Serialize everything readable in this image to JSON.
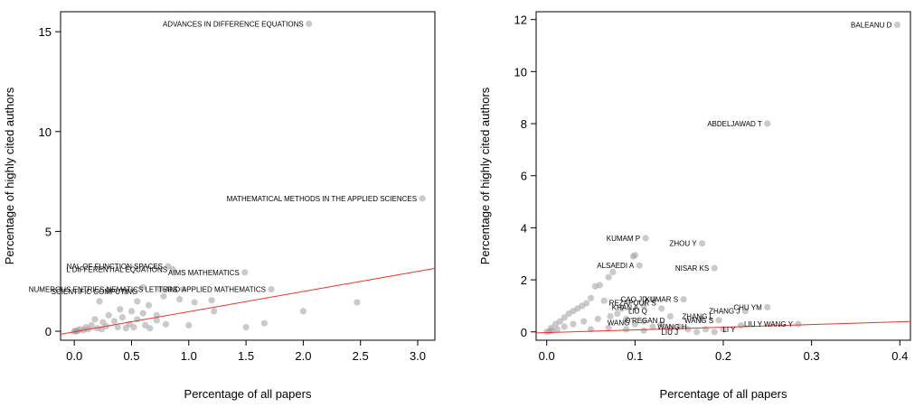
{
  "chart_data": [
    {
      "type": "scatter",
      "title": "",
      "xlabel": "Percentage of all papers",
      "ylabel": "Percentage of highly cited authors",
      "xlim": [
        -0.12,
        3.15
      ],
      "ylim": [
        -0.45,
        16.0
      ],
      "xticks": [
        0.0,
        0.5,
        1.0,
        1.5,
        2.0,
        2.5,
        3.0
      ],
      "xtick_labels": [
        "0.0",
        "0.5",
        "1.0",
        "1.5",
        "2.0",
        "2.5",
        "3.0"
      ],
      "yticks": [
        0,
        5,
        10,
        15
      ],
      "ytick_labels": [
        "0",
        "5",
        "10",
        "15"
      ],
      "grid": false,
      "point_color": "#9e9e9e",
      "fit_line_color": "#e8332a",
      "fit_line": {
        "x": [
          -0.12,
          3.15
        ],
        "y": [
          -0.15,
          3.15
        ]
      },
      "points": [
        {
          "x": 2.05,
          "y": 15.4
        },
        {
          "x": 3.04,
          "y": 6.65
        },
        {
          "x": 0.82,
          "y": 3.25
        },
        {
          "x": 0.86,
          "y": 3.1
        },
        {
          "x": 1.49,
          "y": 2.95
        },
        {
          "x": 0.6,
          "y": 2.2
        },
        {
          "x": 0.75,
          "y": 2.1
        },
        {
          "x": 0.95,
          "y": 2.1
        },
        {
          "x": 1.72,
          "y": 2.1
        },
        {
          "x": 0.3,
          "y": 2.05
        },
        {
          "x": 0.45,
          "y": 2.0
        },
        {
          "x": 0.78,
          "y": 1.75
        },
        {
          "x": 0.92,
          "y": 1.6
        },
        {
          "x": 1.2,
          "y": 1.55
        },
        {
          "x": 2.47,
          "y": 1.45
        },
        {
          "x": 0.55,
          "y": 1.5
        },
        {
          "x": 0.65,
          "y": 1.3
        },
        {
          "x": 1.05,
          "y": 1.45
        },
        {
          "x": 0.22,
          "y": 1.5
        },
        {
          "x": 0.5,
          "y": 1.0
        },
        {
          "x": 0.6,
          "y": 0.9
        },
        {
          "x": 1.22,
          "y": 1.0
        },
        {
          "x": 2.0,
          "y": 1.0
        },
        {
          "x": 0.3,
          "y": 0.8
        },
        {
          "x": 0.42,
          "y": 0.7
        },
        {
          "x": 0.55,
          "y": 0.6
        },
        {
          "x": 0.72,
          "y": 0.55
        },
        {
          "x": 0.18,
          "y": 0.6
        },
        {
          "x": 0.25,
          "y": 0.45
        },
        {
          "x": 0.35,
          "y": 0.5
        },
        {
          "x": 0.48,
          "y": 0.35
        },
        {
          "x": 0.62,
          "y": 0.3
        },
        {
          "x": 0.8,
          "y": 0.35
        },
        {
          "x": 1.0,
          "y": 0.3
        },
        {
          "x": 1.5,
          "y": 0.2
        },
        {
          "x": 1.66,
          "y": 0.4
        },
        {
          "x": 0.1,
          "y": 0.2
        },
        {
          "x": 0.15,
          "y": 0.3
        },
        {
          "x": 0.2,
          "y": 0.15
        },
        {
          "x": 0.28,
          "y": 0.25
        },
        {
          "x": 0.38,
          "y": 0.2
        },
        {
          "x": 0.05,
          "y": 0.1
        },
        {
          "x": 0.08,
          "y": 0.05
        },
        {
          "x": 0.12,
          "y": 0.1
        },
        {
          "x": 0.24,
          "y": 0.1
        },
        {
          "x": 0.45,
          "y": 0.15
        },
        {
          "x": 0.66,
          "y": 0.15
        },
        {
          "x": 0.52,
          "y": 0.2
        },
        {
          "x": 0.72,
          "y": 0.8
        },
        {
          "x": 0.4,
          "y": 1.1
        },
        {
          "x": 0.03,
          "y": 0.03
        },
        {
          "x": 0.02,
          "y": 0.0
        },
        {
          "x": 0.01,
          "y": 0.0
        },
        {
          "x": 0.0,
          "y": 0.0
        }
      ],
      "labels": [
        {
          "text": "ADVANCES IN DIFFERENCE EQUATIONS",
          "x": 2.05,
          "y": 15.4
        },
        {
          "text": "MATHEMATICAL METHODS IN THE APPLIED SCIENCES",
          "x": 3.04,
          "y": 6.65
        },
        {
          "text": "AIMS MATHEMATICS",
          "x": 1.49,
          "y": 2.95
        },
        {
          "text": "NAL OF FUNCTION SPACES",
          "x": 0.82,
          "y": 3.25
        },
        {
          "text": "L DIFFERENTIAL EQUATIONS",
          "x": 0.86,
          "y": 3.1
        },
        {
          "text": "NUMEROUS ENTRIES NEMATICS LETTERS",
          "x": 0.95,
          "y": 2.1
        },
        {
          "text": "SCIENTIFIC COMPUTING",
          "x": 0.6,
          "y": 2.0
        },
        {
          "text": "AND APPLIED MATHEMATICS",
          "x": 1.72,
          "y": 2.1
        }
      ]
    },
    {
      "type": "scatter",
      "title": "",
      "xlabel": "Percentage of all papers",
      "ylabel": "Percentage of highly cited authors",
      "xlim": [
        -0.012,
        0.412
      ],
      "ylim": [
        -0.32,
        12.3
      ],
      "xticks": [
        0.0,
        0.1,
        0.2,
        0.3,
        0.4
      ],
      "xtick_labels": [
        "0.0",
        "0.1",
        "0.2",
        "0.3",
        "0.4"
      ],
      "yticks": [
        0,
        2,
        4,
        6,
        8,
        10,
        12
      ],
      "ytick_labels": [
        "0",
        "2",
        "4",
        "6",
        "8",
        "10",
        "12"
      ],
      "grid": false,
      "point_color": "#9e9e9e",
      "fit_line_color": "#e8332a",
      "fit_line": {
        "x": [
          -0.012,
          0.412
        ],
        "y": [
          -0.04,
          0.4
        ]
      },
      "points": [
        {
          "x": 0.397,
          "y": 11.8
        },
        {
          "x": 0.25,
          "y": 8.0
        },
        {
          "x": 0.112,
          "y": 3.6
        },
        {
          "x": 0.176,
          "y": 3.4
        },
        {
          "x": 0.105,
          "y": 2.55
        },
        {
          "x": 0.19,
          "y": 2.45
        },
        {
          "x": 0.12,
          "y": 1.25
        },
        {
          "x": 0.155,
          "y": 1.25
        },
        {
          "x": 0.25,
          "y": 0.95
        },
        {
          "x": 0.225,
          "y": 0.8
        },
        {
          "x": 0.285,
          "y": 0.3
        },
        {
          "x": 0.22,
          "y": 0.25
        },
        {
          "x": 0.195,
          "y": 0.45
        },
        {
          "x": 0.175,
          "y": 0.5
        },
        {
          "x": 0.14,
          "y": 0.6
        },
        {
          "x": 0.13,
          "y": 0.9
        },
        {
          "x": 0.11,
          "y": 1.0
        },
        {
          "x": 0.1,
          "y": 2.95
        },
        {
          "x": 0.098,
          "y": 2.9
        },
        {
          "x": 0.075,
          "y": 2.3
        },
        {
          "x": 0.07,
          "y": 2.1
        },
        {
          "x": 0.06,
          "y": 1.8
        },
        {
          "x": 0.055,
          "y": 1.75
        },
        {
          "x": 0.05,
          "y": 1.3
        },
        {
          "x": 0.045,
          "y": 1.1
        },
        {
          "x": 0.04,
          "y": 1.0
        },
        {
          "x": 0.035,
          "y": 0.9
        },
        {
          "x": 0.03,
          "y": 0.8
        },
        {
          "x": 0.025,
          "y": 0.7
        },
        {
          "x": 0.02,
          "y": 0.55
        },
        {
          "x": 0.015,
          "y": 0.4
        },
        {
          "x": 0.01,
          "y": 0.3
        },
        {
          "x": 0.005,
          "y": 0.15
        },
        {
          "x": 0.065,
          "y": 1.2
        },
        {
          "x": 0.08,
          "y": 0.7
        },
        {
          "x": 0.09,
          "y": 0.5
        },
        {
          "x": 0.1,
          "y": 0.3
        },
        {
          "x": 0.12,
          "y": 0.2
        },
        {
          "x": 0.14,
          "y": 0.15
        },
        {
          "x": 0.16,
          "y": 0.1
        },
        {
          "x": 0.18,
          "y": 0.1
        },
        {
          "x": 0.2,
          "y": 0.1
        },
        {
          "x": 0.15,
          "y": 0.2
        },
        {
          "x": 0.13,
          "y": 0.3
        },
        {
          "x": 0.11,
          "y": 0.4
        },
        {
          "x": 0.085,
          "y": 0.9
        },
        {
          "x": 0.072,
          "y": 0.6
        },
        {
          "x": 0.058,
          "y": 0.5
        },
        {
          "x": 0.042,
          "y": 0.4
        },
        {
          "x": 0.03,
          "y": 0.3
        },
        {
          "x": 0.02,
          "y": 0.2
        },
        {
          "x": 0.012,
          "y": 0.1
        },
        {
          "x": 0.006,
          "y": 0.05
        },
        {
          "x": 0.003,
          "y": 0.02
        },
        {
          "x": 0.0,
          "y": 0.0
        },
        {
          "x": 0.05,
          "y": 0.1
        },
        {
          "x": 0.07,
          "y": 0.15
        },
        {
          "x": 0.09,
          "y": 0.1
        },
        {
          "x": 0.11,
          "y": 0.05
        },
        {
          "x": 0.17,
          "y": 0.0
        },
        {
          "x": 0.19,
          "y": 0.0
        }
      ],
      "labels": [
        {
          "text": "BALEANU D",
          "x": 0.397,
          "y": 11.8
        },
        {
          "text": "ABDELJAWAD T",
          "x": 0.25,
          "y": 8.0
        },
        {
          "text": "KUMAM P",
          "x": 0.112,
          "y": 3.6
        },
        {
          "text": "ZHOU Y",
          "x": 0.176,
          "y": 3.4
        },
        {
          "text": "ALSAEDI A",
          "x": 0.105,
          "y": 2.55
        },
        {
          "text": "NISAR KS",
          "x": 0.19,
          "y": 2.45
        },
        {
          "text": "CAO JD",
          "x": 0.12,
          "y": 1.25
        },
        {
          "text": "REZAPOUR S",
          "x": 0.13,
          "y": 1.12
        },
        {
          "text": "KUMAR S",
          "x": 0.155,
          "y": 1.25
        },
        {
          "text": "KHAN A",
          "x": 0.11,
          "y": 0.95
        },
        {
          "text": "LIU Q",
          "x": 0.12,
          "y": 0.8
        },
        {
          "text": "CHU YM",
          "x": 0.25,
          "y": 0.95
        },
        {
          "text": "ZHANG J",
          "x": 0.225,
          "y": 0.8
        },
        {
          "text": "ZHANG L",
          "x": 0.195,
          "y": 0.6
        },
        {
          "text": "WANG S",
          "x": 0.195,
          "y": 0.45
        },
        {
          "text": "O'REGAN D",
          "x": 0.14,
          "y": 0.45
        },
        {
          "text": "WANG",
          "x": 0.1,
          "y": 0.35
        },
        {
          "text": "LIU Y WANG Y",
          "x": 0.285,
          "y": 0.3
        },
        {
          "text": "WANG H",
          "x": 0.165,
          "y": 0.2
        },
        {
          "text": "LI Y",
          "x": 0.22,
          "y": 0.1
        },
        {
          "text": "LIU J",
          "x": 0.155,
          "y": 0.0
        }
      ]
    }
  ]
}
